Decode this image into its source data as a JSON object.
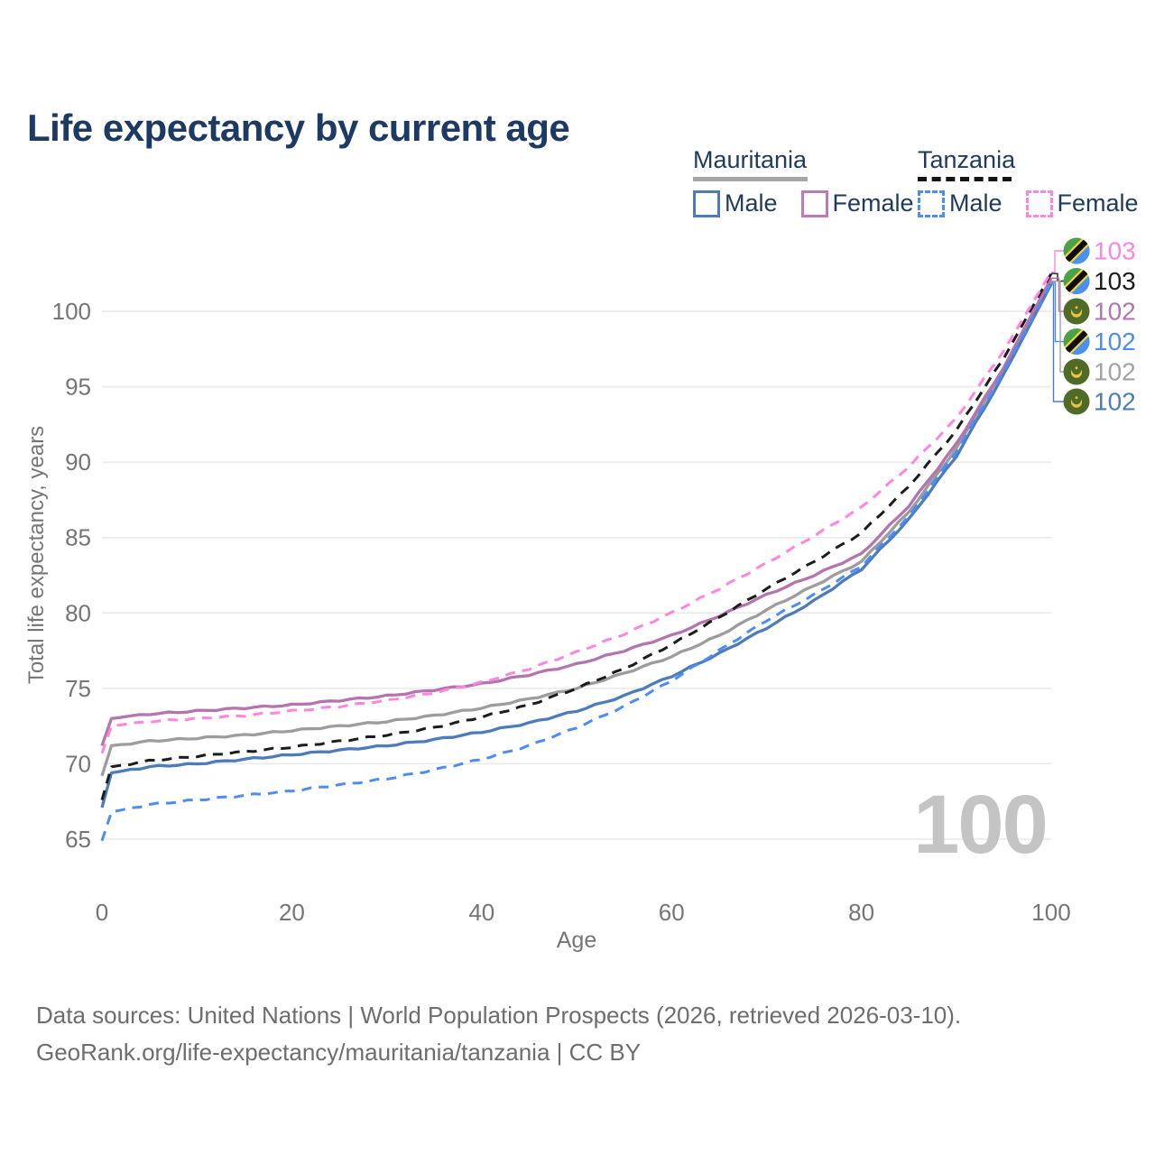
{
  "page": {
    "title": "Life expectancy by current age"
  },
  "legend": {
    "groups": [
      {
        "country": "Mauritania",
        "line_style": "solid",
        "underline_color": "#a6a6a6",
        "items": [
          {
            "label": "Male",
            "color": "#4d7cba",
            "dashed": false
          },
          {
            "label": "Female",
            "color": "#bd7cb5",
            "dashed": false
          }
        ]
      },
      {
        "country": "Tanzania",
        "line_style": "dashed",
        "underline_color": "#141414",
        "items": [
          {
            "label": "Male",
            "color": "#4b8cf7",
            "dashed": true
          },
          {
            "label": "Female",
            "color": "#ff85e0",
            "dashed": true
          }
        ]
      }
    ]
  },
  "chart_data": {
    "type": "line",
    "title": "Life expectancy by current age",
    "xlabel": "Age",
    "ylabel": "Total life expectancy, years",
    "xlim": [
      0,
      100
    ],
    "ylim": [
      63.5,
      103.5
    ],
    "xticks": [
      0,
      20,
      40,
      60,
      80,
      100
    ],
    "yticks": [
      65,
      70,
      75,
      80,
      85,
      90,
      95,
      100
    ],
    "grid": "horizontal-only",
    "legend_position": "top-right",
    "watermark": "100",
    "x": [
      0,
      1,
      5,
      10,
      15,
      20,
      25,
      30,
      35,
      40,
      45,
      50,
      55,
      60,
      65,
      70,
      75,
      80,
      85,
      90,
      95,
      100
    ],
    "series": [
      {
        "id": "mr-male",
        "name": "Mauritania Male",
        "color": "#4d7cba",
        "dashed": false,
        "values": [
          67.1,
          69.4,
          69.8,
          70.0,
          70.3,
          70.6,
          70.9,
          71.2,
          71.6,
          72.1,
          72.7,
          73.5,
          74.5,
          75.8,
          77.3,
          79.0,
          80.8,
          82.9,
          86.2,
          90.4,
          95.8,
          101.8
        ]
      },
      {
        "id": "mr-both",
        "name": "Mauritania Both sexes",
        "color": "#9d9d9d",
        "dashed": false,
        "values": [
          69.2,
          71.2,
          71.5,
          71.7,
          71.9,
          72.2,
          72.5,
          72.8,
          73.2,
          73.7,
          74.3,
          75.0,
          76.0,
          77.1,
          78.5,
          80.2,
          81.8,
          83.4,
          86.7,
          90.9,
          96.1,
          102.0
        ]
      },
      {
        "id": "mr-female",
        "name": "Mauritania Female",
        "color": "#b475ad",
        "dashed": false,
        "values": [
          71.2,
          73.0,
          73.3,
          73.5,
          73.7,
          73.9,
          74.2,
          74.5,
          74.9,
          75.3,
          75.9,
          76.6,
          77.5,
          78.5,
          79.8,
          81.2,
          82.5,
          83.9,
          87.1,
          91.2,
          96.3,
          102.2
        ]
      },
      {
        "id": "tz-male",
        "name": "Tanzania Male",
        "color": "#4b8cf7",
        "dashed": true,
        "values": [
          64.9,
          66.8,
          67.3,
          67.6,
          67.9,
          68.2,
          68.6,
          69.0,
          69.6,
          70.3,
          71.2,
          72.4,
          73.8,
          75.5,
          77.5,
          79.5,
          81.2,
          83.1,
          86.4,
          90.7,
          96.0,
          101.9
        ]
      },
      {
        "id": "tz-both",
        "name": "Tanzania Both sexes",
        "color": "#1c1c1c",
        "dashed": true,
        "values": [
          67.6,
          69.8,
          70.2,
          70.5,
          70.8,
          71.1,
          71.5,
          71.9,
          72.4,
          73.1,
          73.9,
          75.0,
          76.3,
          77.9,
          79.7,
          81.6,
          83.4,
          85.3,
          88.4,
          92.1,
          96.9,
          102.5
        ]
      },
      {
        "id": "tz-female",
        "name": "Tanzania Female",
        "color": "#ff85e0",
        "dashed": true,
        "values": [
          70.7,
          72.5,
          72.8,
          73.0,
          73.2,
          73.5,
          73.8,
          74.2,
          74.7,
          75.4,
          76.3,
          77.4,
          78.6,
          80.0,
          81.6,
          83.3,
          85.1,
          87.0,
          89.7,
          92.9,
          97.4,
          102.6
        ]
      }
    ],
    "end_labels": [
      {
        "series": "tz-female",
        "label": "103",
        "color": "#ff85e0",
        "country": "tanzania"
      },
      {
        "series": "tz-both",
        "label": "103",
        "color": "#1c1c1c",
        "country": "tanzania"
      },
      {
        "series": "mr-female",
        "label": "102",
        "color": "#b475ad",
        "country": "mauritania"
      },
      {
        "series": "tz-male",
        "label": "102",
        "color": "#4b8cf7",
        "country": "tanzania"
      },
      {
        "series": "mr-both",
        "label": "102",
        "color": "#a3a3a3",
        "country": "mauritania"
      },
      {
        "series": "mr-male",
        "label": "102",
        "color": "#4d7cba",
        "country": "mauritania"
      }
    ],
    "flag_colors": {
      "tanzania": {
        "green": "#4ba146",
        "blue": "#4a90f0",
        "black": "#0d0d0d",
        "yellow": "#f5d33f"
      },
      "mauritania": {
        "green": "#4f6b28",
        "gold": "#eec43f"
      }
    }
  },
  "footer": {
    "line1": "Data sources: United Nations | World Population Prospects (2026, retrieved 2026-03-10).",
    "line2": "GeoRank.org/life-expectancy/mauritania/tanzania | CC BY"
  }
}
